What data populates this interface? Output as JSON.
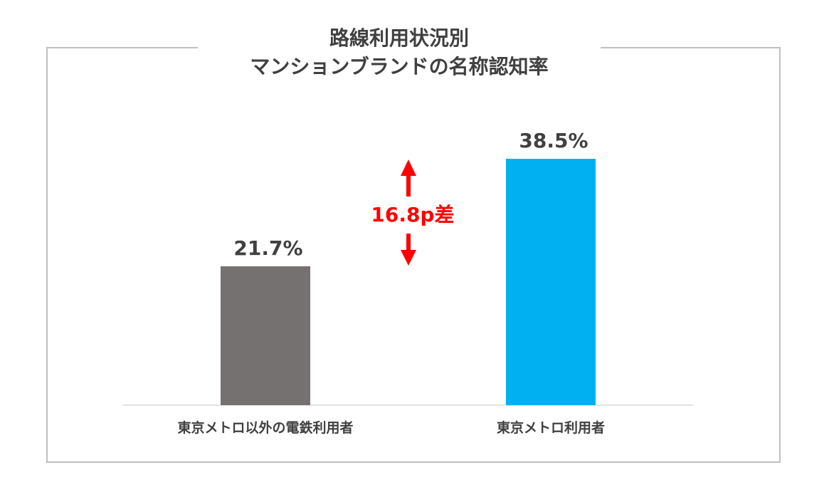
{
  "title_lines": [
    "路線利用状況別",
    "マンションブランドの名称認知率"
  ],
  "chart_data": {
    "type": "bar",
    "categories": [
      "東京メトロ以外の電鉄利用者",
      "東京メトロ利用者"
    ],
    "values": [
      21.7,
      38.5
    ],
    "value_labels": [
      "21.7%",
      "38.5%"
    ],
    "colors": [
      "#767171",
      "#00b0f0"
    ],
    "difference_label": "16.8p差",
    "difference_color": "#ff0000",
    "ylim": [
      0,
      45
    ],
    "grid": false
  }
}
